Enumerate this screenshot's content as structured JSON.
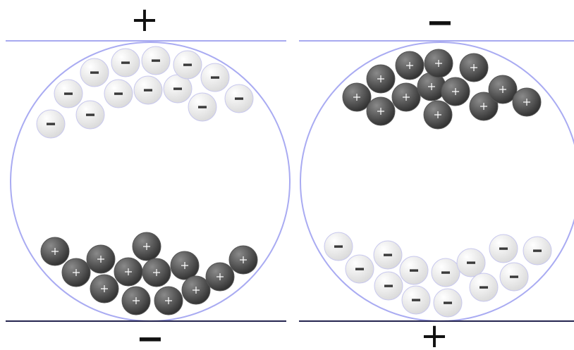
{
  "panels": [
    {
      "id": "left",
      "top_terminal": "+",
      "bottom_terminal": "−",
      "top_group_sign": "−",
      "bottom_group_sign": "+"
    },
    {
      "id": "right",
      "top_terminal": "−",
      "bottom_terminal": "+",
      "top_group_sign": "+",
      "bottom_group_sign": "−"
    }
  ],
  "colors": {
    "plate_top": "#a7a9f0",
    "plate_bottom": "#24244f",
    "container_outline": "#a9abf2",
    "negative_particle_fill": "#ececec",
    "negative_particle_stroke": "#c8c8ee",
    "negative_sign": "#3a3a3a",
    "positive_particle_fill": "#4a4a4a",
    "positive_sign": "#ffffff"
  }
}
